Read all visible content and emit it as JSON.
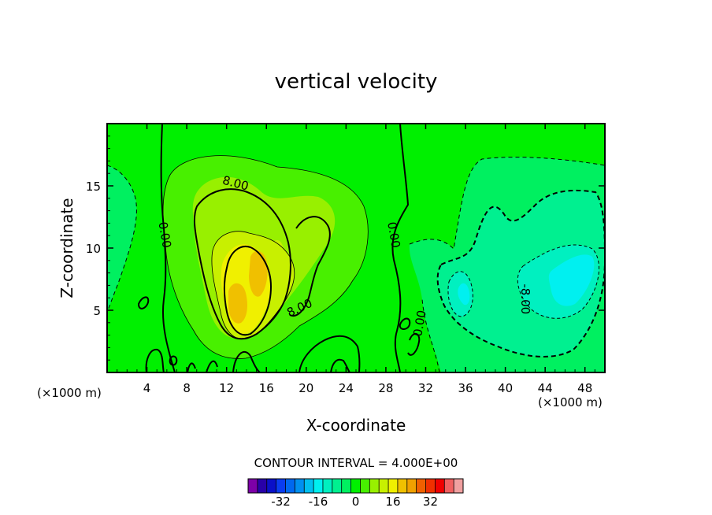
{
  "chart_data": {
    "type": "contour",
    "title": "vertical velocity",
    "xlabel": "X-coordinate",
    "ylabel": "Z-coordinate",
    "x_unit_label": "(×1000 m)",
    "y_unit_label": "(×1000 m)",
    "xlim": [
      0,
      50
    ],
    "ylim": [
      0,
      20
    ],
    "x_ticks": [
      4,
      8,
      12,
      16,
      20,
      24,
      28,
      32,
      36,
      40,
      44,
      48
    ],
    "y_ticks": [
      5,
      10,
      15
    ],
    "contour_interval_text": "CONTOUR INTERVAL = 4.000E+00",
    "contour_labels": [
      {
        "text": "8.00",
        "x": 12.8,
        "y": 14.9,
        "rotate": 15
      },
      {
        "text": "8.00",
        "x": 19.5,
        "y": 4.9,
        "rotate": -25
      },
      {
        "text": "0.00",
        "x": 5.4,
        "y": 11.0,
        "rotate": 80
      },
      {
        "text": "0.00",
        "x": 28.4,
        "y": 11.0,
        "rotate": 80
      },
      {
        "text": "0.00",
        "x": 31.8,
        "y": 3.9,
        "rotate": -80
      },
      {
        "text": "-8.00",
        "x": 41.6,
        "y": 5.9,
        "rotate": 90
      }
    ],
    "colorbar": {
      "tick_labels": [
        "-32",
        "-16",
        "0",
        "16",
        "32"
      ],
      "tick_values": [
        -32,
        -16,
        0,
        16,
        32
      ],
      "levels": [
        -44,
        -40,
        -36,
        -32,
        -28,
        -24,
        -20,
        -16,
        -12,
        -8,
        -4,
        0,
        4,
        8,
        12,
        16,
        20,
        24,
        28,
        32,
        36,
        40,
        44
      ],
      "colors": [
        "#7d00a8",
        "#2800a8",
        "#0a10c8",
        "#0a3cf0",
        "#0068f0",
        "#0090f0",
        "#00c0f0",
        "#00f0f0",
        "#00f0c0",
        "#00f090",
        "#00f060",
        "#00f000",
        "#48f000",
        "#98f000",
        "#c8f000",
        "#f0f000",
        "#f0c000",
        "#f0a000",
        "#f06000",
        "#f03000",
        "#f00000",
        "#f06060",
        "#f0a0a0"
      ]
    },
    "field_colors": {
      "background": "#00f000",
      "ring_plus_4": "#48f000",
      "ring_plus_8": "#98f000",
      "ring_plus_12": "#c8f000",
      "ring_plus_16": "#f0f000",
      "ring_plus_20": "#f0c000",
      "ring_minus_4": "#00f060",
      "ring_minus_8": "#00f090",
      "ring_minus_12": "#00f0c0",
      "ring_minus_16": "#00f0f0"
    }
  }
}
